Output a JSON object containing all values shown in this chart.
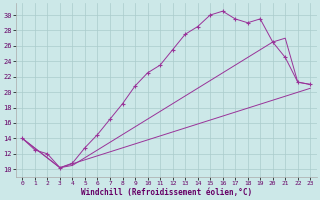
{
  "xlabel": "Windchill (Refroidissement éolien,°C)",
  "bg_color": "#cce8e8",
  "grid_color": "#aacccc",
  "line_color": "#993399",
  "ylim": [
    9.0,
    31.5
  ],
  "xlim": [
    -0.5,
    23.5
  ],
  "x_ticks": [
    0,
    1,
    2,
    3,
    4,
    5,
    6,
    7,
    8,
    9,
    10,
    11,
    12,
    13,
    14,
    15,
    16,
    17,
    18,
    19,
    20,
    21,
    22,
    23
  ],
  "y_ticks": [
    10,
    12,
    14,
    16,
    18,
    20,
    22,
    24,
    26,
    28,
    30
  ],
  "curve1_x": [
    0,
    1,
    2,
    3,
    4,
    5,
    6,
    7,
    8,
    9,
    10,
    11,
    12,
    13,
    14,
    15,
    16,
    17,
    18,
    19,
    20,
    21,
    22,
    23
  ],
  "curve1_y": [
    14.0,
    12.5,
    12.0,
    10.2,
    10.8,
    12.8,
    14.5,
    16.5,
    18.5,
    20.8,
    22.5,
    23.5,
    25.5,
    27.5,
    28.5,
    30.0,
    30.5,
    29.5,
    29.0,
    29.5,
    26.5,
    24.5,
    21.3,
    21.0
  ],
  "curve2_x": [
    0,
    3,
    4,
    5,
    6,
    7,
    8,
    9,
    10,
    11,
    12,
    13,
    14,
    15,
    16,
    17,
    18,
    19,
    20,
    21,
    22,
    23
  ],
  "curve2_y": [
    14.0,
    10.2,
    10.5,
    11.5,
    12.5,
    13.5,
    14.5,
    15.5,
    16.5,
    17.5,
    18.5,
    19.5,
    20.5,
    21.5,
    22.5,
    23.5,
    24.5,
    25.5,
    26.5,
    27.0,
    21.3,
    21.0
  ],
  "curve3_x": [
    0,
    3,
    23
  ],
  "curve3_y": [
    14.0,
    10.2,
    20.5
  ]
}
